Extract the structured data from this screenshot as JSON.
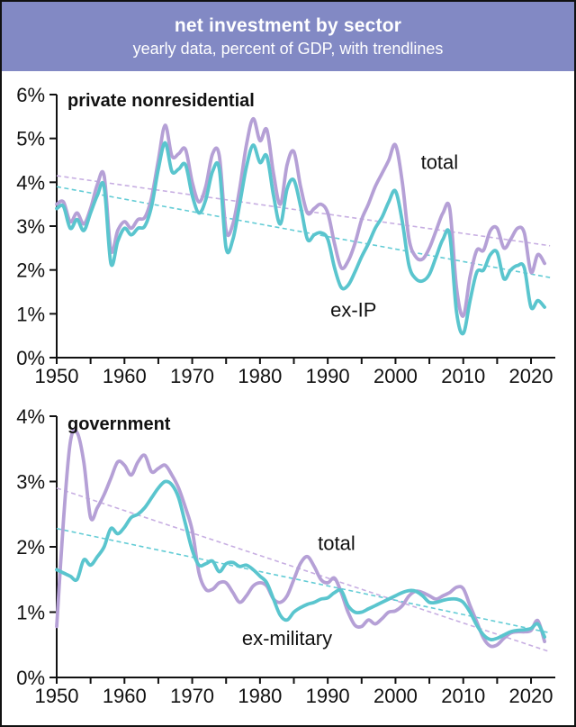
{
  "header": {
    "title": "net investment by sector",
    "subtitle": "yearly data, percent of GDP, with trendlines"
  },
  "colors": {
    "header_bg": "#8289c4",
    "header_text": "#ffffff",
    "frame_border": "#111111",
    "background": "#ffffff",
    "axis": "#111111",
    "text": "#111111",
    "purple_line": "#b5a0d6",
    "teal_line": "#5ac5ce",
    "purple_trend": "#c7aee2",
    "teal_trend": "#63ccd5"
  },
  "chart_data": [
    {
      "type": "line",
      "title": "private nonresidential",
      "unit": "percent of GDP",
      "x_start": 1950,
      "x_end": 2022,
      "ylim": [
        0,
        6
      ],
      "yticks": [
        [
          0,
          "0%"
        ],
        [
          1,
          "1%"
        ],
        [
          2,
          "2%"
        ],
        [
          3,
          "3%"
        ],
        [
          4,
          "4%"
        ],
        [
          5,
          "5%"
        ],
        [
          6,
          "6%"
        ]
      ],
      "xticks_major": [
        [
          1950,
          "1950"
        ],
        [
          1960,
          "1960"
        ],
        [
          1970,
          "1970"
        ],
        [
          1980,
          "1980"
        ],
        [
          1990,
          "1990"
        ],
        [
          2000,
          "2000"
        ],
        [
          2010,
          "2010"
        ],
        [
          2020,
          "2020"
        ]
      ],
      "xticks_minor": [
        1955,
        1965,
        1975,
        1985,
        1995,
        2005,
        2015
      ],
      "series": [
        {
          "name": "total",
          "color": "purple_line",
          "values": [
            3.5,
            3.55,
            3.1,
            3.3,
            3.05,
            3.4,
            3.95,
            4.15,
            2.45,
            2.9,
            3.1,
            2.95,
            3.15,
            3.2,
            3.65,
            4.5,
            5.3,
            4.6,
            4.65,
            4.75,
            4.0,
            3.55,
            3.9,
            4.65,
            4.6,
            2.9,
            3.05,
            3.85,
            4.85,
            5.45,
            4.95,
            5.2,
            4.2,
            3.5,
            4.4,
            4.7,
            3.9,
            3.3,
            3.4,
            3.5,
            3.3,
            2.6,
            2.05,
            2.2,
            2.6,
            3.15,
            3.5,
            3.9,
            4.2,
            4.5,
            4.85,
            4.0,
            2.7,
            2.3,
            2.25,
            2.5,
            2.9,
            3.3,
            3.4,
            1.6,
            0.95,
            1.85,
            2.45,
            2.45,
            2.9,
            2.95,
            2.5,
            2.7,
            2.95,
            2.85,
            1.95,
            2.35,
            2.15
          ]
        },
        {
          "name": "ex-IP",
          "color": "teal_line",
          "values": [
            3.4,
            3.45,
            2.95,
            3.15,
            2.9,
            3.3,
            3.7,
            3.9,
            2.15,
            2.65,
            2.95,
            2.8,
            2.95,
            3.0,
            3.45,
            4.3,
            4.9,
            4.25,
            4.3,
            4.4,
            3.7,
            3.3,
            3.6,
            4.25,
            4.3,
            2.5,
            2.7,
            3.5,
            4.35,
            4.85,
            4.45,
            4.6,
            3.7,
            3.05,
            3.85,
            4.05,
            3.45,
            2.7,
            2.8,
            2.85,
            2.7,
            2.05,
            1.6,
            1.65,
            1.95,
            2.3,
            2.6,
            2.95,
            3.2,
            3.55,
            3.8,
            3.1,
            2.1,
            1.8,
            1.75,
            1.9,
            2.3,
            2.7,
            2.8,
            1.05,
            0.55,
            1.3,
            1.95,
            2.0,
            2.35,
            2.4,
            1.8,
            2.0,
            2.1,
            2.05,
            1.15,
            1.3,
            1.15
          ]
        }
      ],
      "trendlines": [
        {
          "for": "total",
          "color": "purple_trend",
          "start_value": 4.15,
          "end_value": 2.57
        },
        {
          "for": "ex-IP",
          "color": "teal_trend",
          "start_value": 3.9,
          "end_value": 1.85
        }
      ],
      "annotations": [
        {
          "text": "total",
          "year": 2006.5,
          "value": 4.3
        },
        {
          "text": "ex-IP",
          "year": 1993.8,
          "value": 0.93
        }
      ]
    },
    {
      "type": "line",
      "title": "government",
      "unit": "percent of GDP",
      "x_start": 1950,
      "x_end": 2022,
      "ylim": [
        0,
        4
      ],
      "yticks": [
        [
          0,
          "0%"
        ],
        [
          1,
          "1%"
        ],
        [
          2,
          "2%"
        ],
        [
          3,
          "3%"
        ],
        [
          4,
          "4%"
        ]
      ],
      "xticks_major": [
        [
          1950,
          "1950"
        ],
        [
          1960,
          "1960"
        ],
        [
          1970,
          "1970"
        ],
        [
          1980,
          "1980"
        ],
        [
          1990,
          "1990"
        ],
        [
          2000,
          "2000"
        ],
        [
          2010,
          "2010"
        ],
        [
          2020,
          "2020"
        ]
      ],
      "xticks_minor": [
        1955,
        1965,
        1975,
        1985,
        1995,
        2005,
        2015
      ],
      "series": [
        {
          "name": "total",
          "color": "purple_line",
          "values": [
            0.78,
            2.4,
            3.6,
            3.75,
            3.3,
            2.45,
            2.6,
            2.8,
            3.05,
            3.3,
            3.25,
            3.1,
            3.3,
            3.4,
            3.15,
            3.2,
            3.25,
            3.1,
            2.9,
            2.6,
            2.25,
            1.6,
            1.35,
            1.35,
            1.45,
            1.45,
            1.3,
            1.15,
            1.25,
            1.4,
            1.45,
            1.4,
            1.2,
            1.15,
            1.25,
            1.5,
            1.75,
            1.85,
            1.7,
            1.5,
            1.45,
            1.52,
            1.3,
            1.0,
            0.8,
            0.78,
            0.88,
            0.82,
            0.9,
            1.0,
            1.02,
            1.1,
            1.25,
            1.32,
            1.3,
            1.25,
            1.2,
            1.25,
            1.3,
            1.38,
            1.36,
            1.1,
            0.85,
            0.6,
            0.48,
            0.5,
            0.6,
            0.68,
            0.7,
            0.7,
            0.72,
            0.87,
            0.55
          ]
        },
        {
          "name": "ex-military",
          "color": "teal_line",
          "values": [
            1.65,
            1.6,
            1.55,
            1.5,
            1.8,
            1.72,
            1.85,
            2.0,
            2.28,
            2.2,
            2.3,
            2.45,
            2.5,
            2.6,
            2.75,
            2.9,
            3.0,
            2.95,
            2.75,
            2.35,
            1.95,
            1.72,
            1.74,
            1.78,
            1.62,
            1.74,
            1.76,
            1.7,
            1.72,
            1.65,
            1.55,
            1.45,
            1.2,
            0.95,
            0.88,
            1.0,
            1.07,
            1.12,
            1.15,
            1.2,
            1.22,
            1.3,
            1.33,
            1.1,
            1.0,
            1.0,
            1.05,
            1.1,
            1.15,
            1.2,
            1.25,
            1.3,
            1.33,
            1.32,
            1.25,
            1.15,
            1.15,
            1.18,
            1.2,
            1.2,
            1.15,
            1.0,
            0.8,
            0.65,
            0.58,
            0.6,
            0.65,
            0.7,
            0.72,
            0.73,
            0.75,
            0.82,
            0.62
          ]
        }
      ],
      "trendlines": [
        {
          "for": "total",
          "color": "purple_trend",
          "start_value": 2.9,
          "end_value": 0.42
        },
        {
          "for": "ex-military",
          "color": "teal_trend",
          "start_value": 2.28,
          "end_value": 0.7
        }
      ],
      "annotations": [
        {
          "text": "total",
          "year": 1991.3,
          "value": 1.95
        },
        {
          "text": "ex-military",
          "year": 1984.0,
          "value": 0.5
        }
      ]
    }
  ]
}
